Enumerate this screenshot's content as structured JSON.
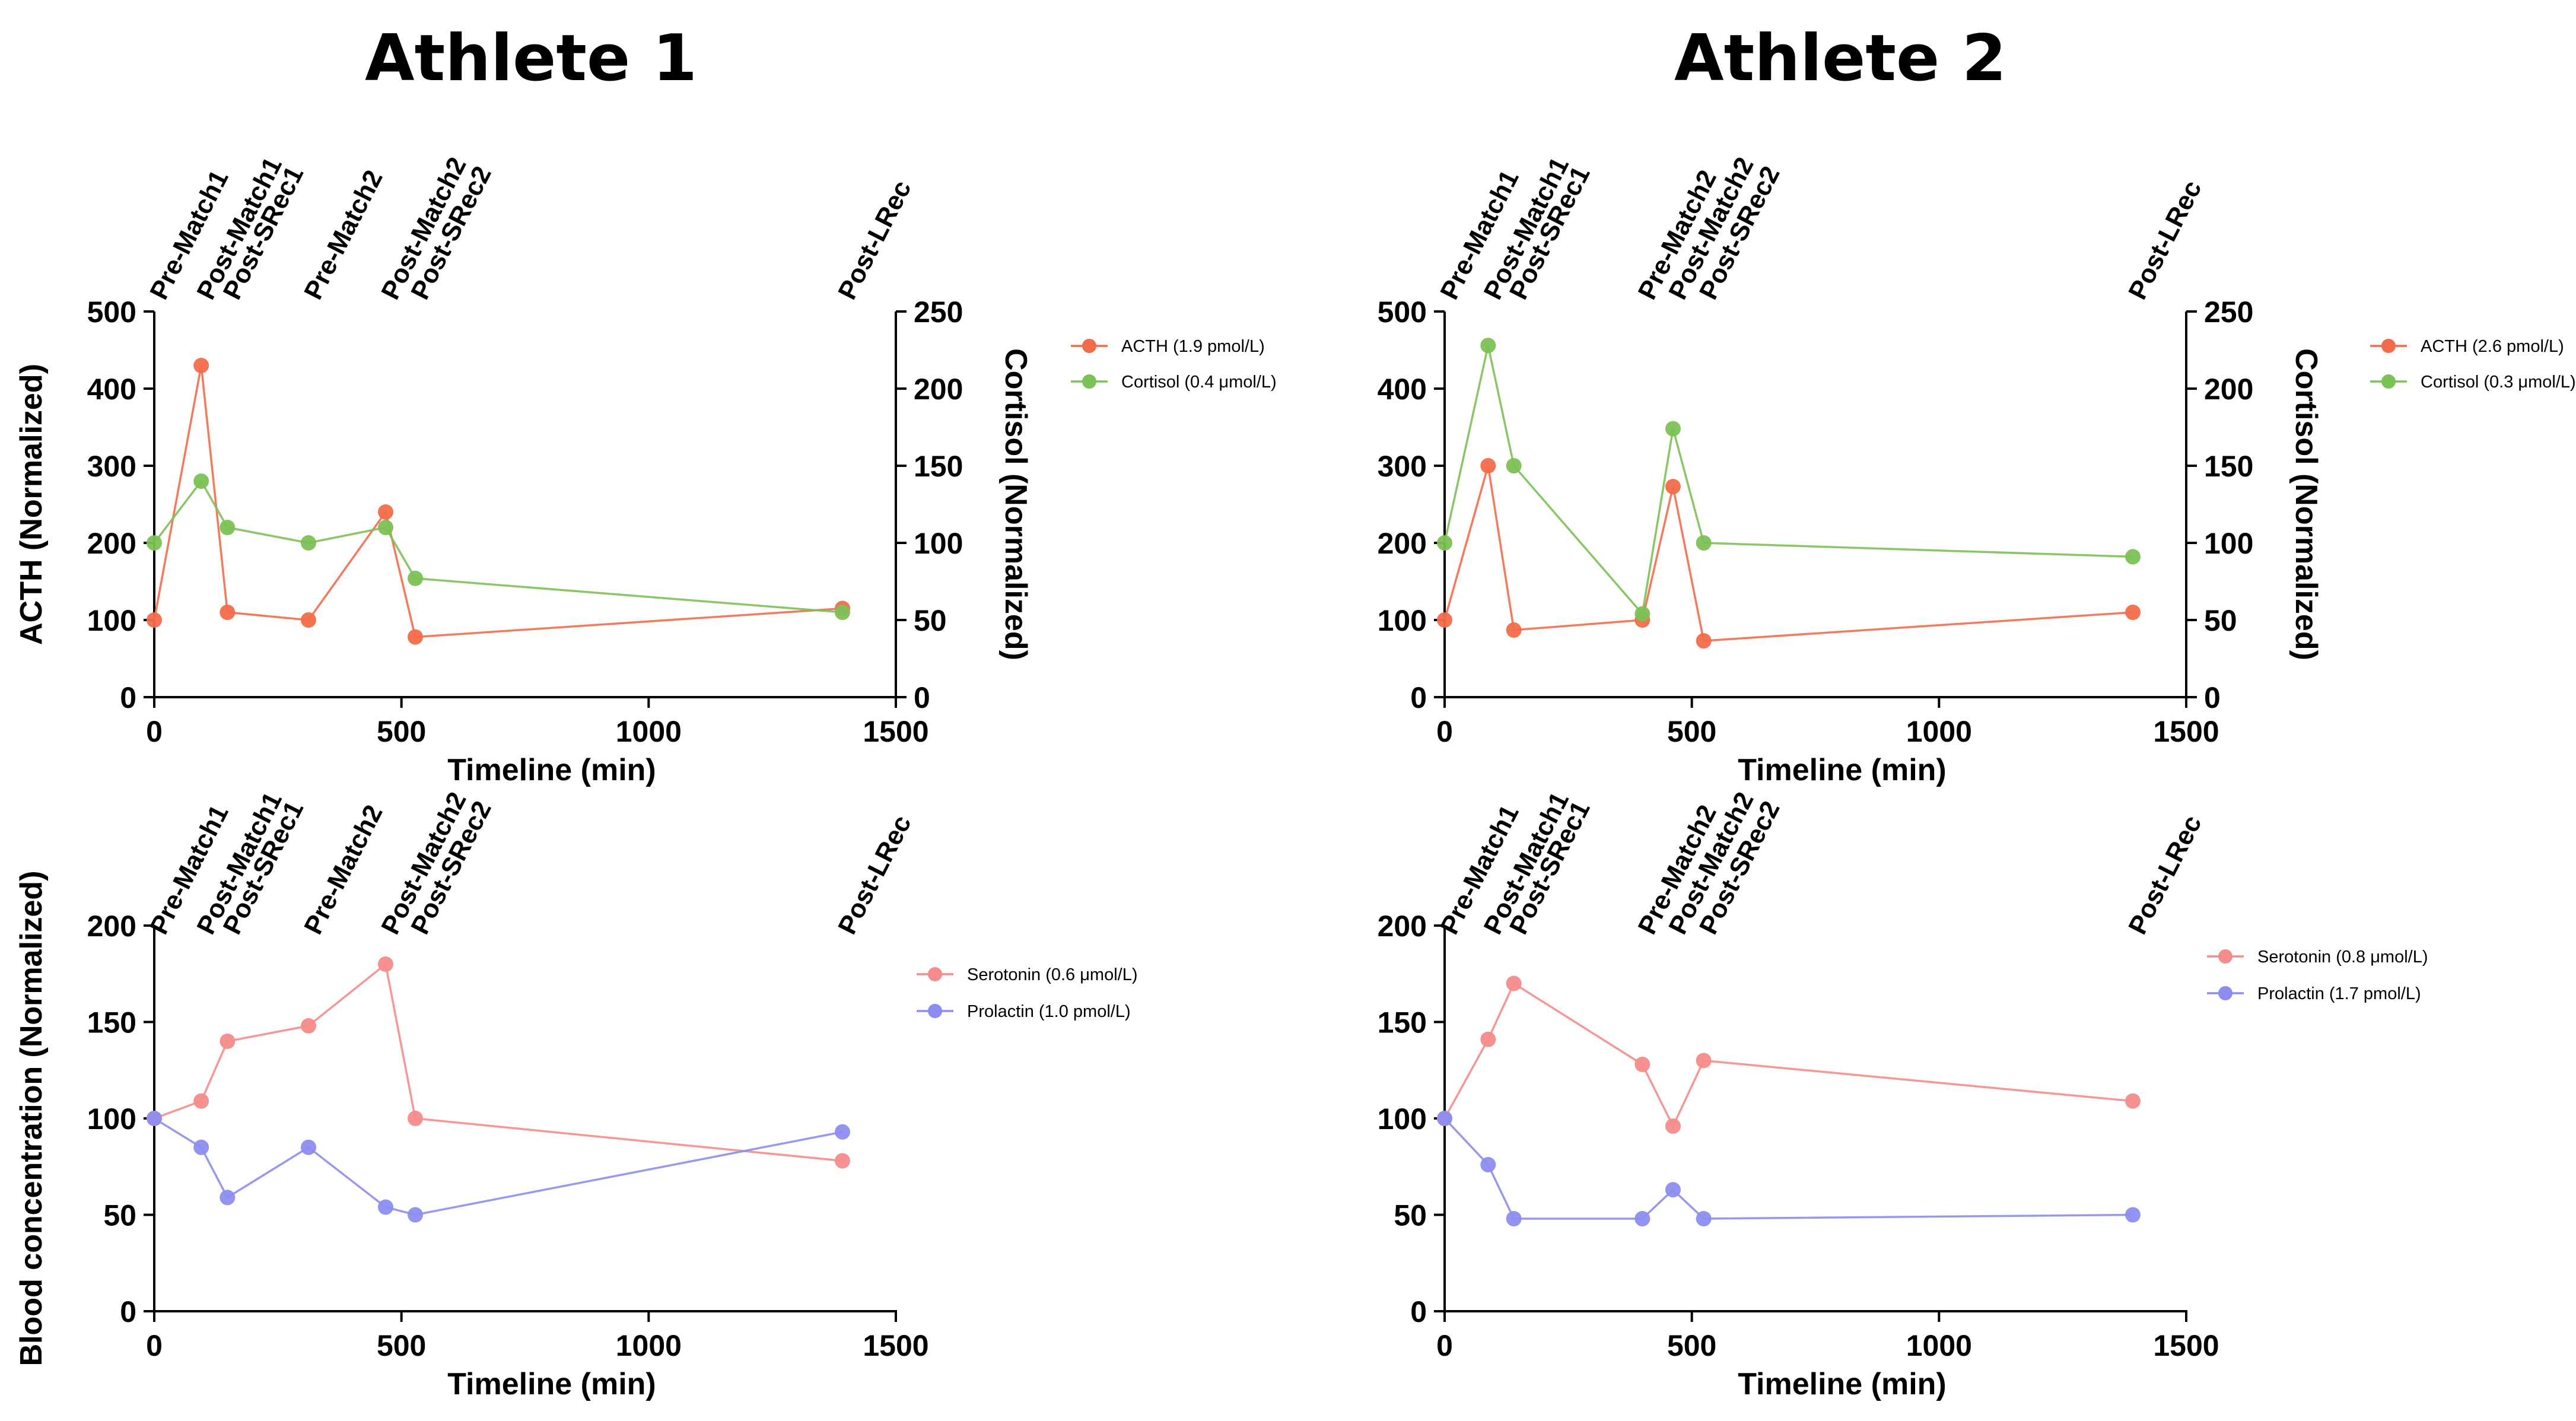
{
  "colors": {
    "ACTH": "#f26b4a",
    "Cortisol": "#7cc155",
    "Serotonin": "#f58b8b",
    "Prolactin": "#8d8df0",
    "axis": "#000000"
  },
  "athletes": [
    {
      "title": "Athlete 1",
      "charts": [
        {
          "chart_data": {
            "type": "line",
            "xlabel": "Timeline (min)",
            "ylabel": "ACTH (Normalized)",
            "y2label": "Cortisol (Normalized)",
            "xlim": [
              0,
              1500
            ],
            "ylim": [
              0,
              500
            ],
            "y2lim": [
              0,
              250
            ],
            "xticks": [
              0,
              500,
              1000,
              1500
            ],
            "yticks": [
              0,
              100,
              200,
              300,
              400,
              500
            ],
            "y2ticks": [
              0,
              50,
              100,
              150,
              200,
              250
            ],
            "legend_position": "right",
            "events": [
              {
                "label": "Pre-Match1",
                "x": 0
              },
              {
                "label": "Post-Match1",
                "x": 95
              },
              {
                "label": "Post-SRec1",
                "x": 148
              },
              {
                "label": "Pre-Match2",
                "x": 312
              },
              {
                "label": "Post-Match2",
                "x": 468
              },
              {
                "label": "Post-SRec2",
                "x": 528
              },
              {
                "label": "Post-LRec",
                "x": 1392
              }
            ],
            "series": [
              {
                "name": "ACTH",
                "legend": "ACTH  (1.9 pmol/L)",
                "axis": "left",
                "color_key": "ACTH",
                "x": [
                  0,
                  95,
                  148,
                  312,
                  468,
                  528,
                  1392
                ],
                "values": [
                  100,
                  430,
                  110,
                  100,
                  240,
                  78,
                  115
                ]
              },
              {
                "name": "Cortisol",
                "legend": "Cortisol (0.4 μmol/L)",
                "axis": "right",
                "color_key": "Cortisol",
                "x": [
                  0,
                  95,
                  148,
                  312,
                  468,
                  528,
                  1392
                ],
                "values": [
                  100,
                  140,
                  110,
                  100,
                  110,
                  77,
                  55
                ]
              }
            ]
          }
        },
        {
          "chart_data": {
            "type": "line",
            "xlabel": "Timeline (min)",
            "ylabel": "Blood concentration (Normalized)",
            "xlim": [
              0,
              1500
            ],
            "ylim": [
              0,
              200
            ],
            "xticks": [
              0,
              500,
              1000,
              1500
            ],
            "yticks": [
              0,
              50,
              100,
              150,
              200
            ],
            "legend_position": "right",
            "events": [
              {
                "label": "Pre-Match1",
                "x": 0
              },
              {
                "label": "Post-Match1",
                "x": 95
              },
              {
                "label": "Post-SRec1",
                "x": 148
              },
              {
                "label": "Pre-Match2",
                "x": 312
              },
              {
                "label": "Post-Match2",
                "x": 468
              },
              {
                "label": "Post-SRec2",
                "x": 528
              },
              {
                "label": "Post-LRec",
                "x": 1392
              }
            ],
            "series": [
              {
                "name": "Serotonin",
                "legend": "Serotonin (0.6 μmol/L)",
                "axis": "left",
                "color_key": "Serotonin",
                "x": [
                  0,
                  95,
                  148,
                  312,
                  468,
                  528,
                  1392
                ],
                "values": [
                  100,
                  109,
                  140,
                  148,
                  180,
                  100,
                  78
                ]
              },
              {
                "name": "Prolactin",
                "legend": "Prolactin (1.0 pmol/L)",
                "axis": "left",
                "color_key": "Prolactin",
                "x": [
                  0,
                  95,
                  148,
                  312,
                  468,
                  528,
                  1392
                ],
                "values": [
                  100,
                  85,
                  59,
                  85,
                  54,
                  50,
                  93
                ]
              }
            ]
          }
        }
      ]
    },
    {
      "title": "Athlete 2",
      "charts": [
        {
          "chart_data": {
            "type": "line",
            "xlabel": "Timeline (min)",
            "ylabel": "ACTH (Normalized)",
            "y2label": "Cortisol (Normalized)",
            "xlim": [
              0,
              1500
            ],
            "ylim": [
              0,
              500
            ],
            "y2lim": [
              0,
              250
            ],
            "xticks": [
              0,
              500,
              1000,
              1500
            ],
            "yticks": [
              0,
              100,
              200,
              300,
              400,
              500
            ],
            "y2ticks": [
              0,
              50,
              100,
              150,
              200,
              250
            ],
            "legend_position": "right",
            "events": [
              {
                "label": "Pre-Match1",
                "x": 0
              },
              {
                "label": "Post-Match1",
                "x": 88
              },
              {
                "label": "Post-SRec1",
                "x": 140
              },
              {
                "label": "Pre-Match2",
                "x": 400
              },
              {
                "label": "Post-Match2",
                "x": 462
              },
              {
                "label": "Post-SRec2",
                "x": 524
              },
              {
                "label": "Post-LRec",
                "x": 1392
              }
            ],
            "series": [
              {
                "name": "ACTH",
                "legend": "ACTH (2.6 pmol/L)",
                "axis": "left",
                "color_key": "ACTH",
                "x": [
                  0,
                  88,
                  140,
                  400,
                  462,
                  524,
                  1392
                ],
                "values": [
                  100,
                  300,
                  87,
                  100,
                  273,
                  73,
                  110
                ]
              },
              {
                "name": "Cortisol",
                "legend": "Cortisol (0.3 μmol/L)",
                "axis": "right",
                "color_key": "Cortisol",
                "x": [
                  0,
                  88,
                  140,
                  400,
                  462,
                  524,
                  1392
                ],
                "values": [
                  100,
                  228,
                  150,
                  54,
                  174,
                  100,
                  91
                ]
              }
            ]
          }
        },
        {
          "chart_data": {
            "type": "line",
            "xlabel": "Timeline (min)",
            "ylabel": "Blood concentration (Normalized)",
            "xlim": [
              0,
              1500
            ],
            "ylim": [
              0,
              200
            ],
            "xticks": [
              0,
              500,
              1000,
              1500
            ],
            "yticks": [
              0,
              50,
              100,
              150,
              200
            ],
            "legend_position": "right",
            "events": [
              {
                "label": "Pre-Match1",
                "x": 0
              },
              {
                "label": "Post-Match1",
                "x": 88
              },
              {
                "label": "Post-SRec1",
                "x": 140
              },
              {
                "label": "Pre-Match2",
                "x": 400
              },
              {
                "label": "Post-Match2",
                "x": 462
              },
              {
                "label": "Post-SRec2",
                "x": 524
              },
              {
                "label": "Post-LRec",
                "x": 1392
              }
            ],
            "series": [
              {
                "name": "Serotonin",
                "legend": "Serotonin (0.8 μmol/L)",
                "axis": "left",
                "color_key": "Serotonin",
                "x": [
                  0,
                  88,
                  140,
                  400,
                  462,
                  524,
                  1392
                ],
                "values": [
                  100,
                  141,
                  170,
                  128,
                  96,
                  130,
                  109
                ]
              },
              {
                "name": "Prolactin",
                "legend": "Prolactin (1.7 pmol/L)",
                "axis": "left",
                "color_key": "Prolactin",
                "x": [
                  0,
                  88,
                  140,
                  400,
                  462,
                  524,
                  1392
                ],
                "values": [
                  100,
                  76,
                  48,
                  48,
                  63,
                  48,
                  50
                ]
              }
            ]
          }
        }
      ]
    }
  ]
}
